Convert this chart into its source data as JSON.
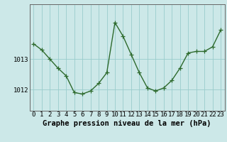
{
  "x": [
    0,
    1,
    2,
    3,
    4,
    5,
    6,
    7,
    8,
    9,
    10,
    11,
    12,
    13,
    14,
    15,
    16,
    17,
    18,
    19,
    20,
    21,
    22,
    23
  ],
  "y": [
    1013.5,
    1013.3,
    1013.0,
    1012.7,
    1012.45,
    1011.9,
    1011.85,
    1011.95,
    1012.2,
    1012.55,
    1014.2,
    1013.75,
    1013.15,
    1012.55,
    1012.05,
    1011.95,
    1012.05,
    1012.3,
    1012.7,
    1013.2,
    1013.25,
    1013.25,
    1013.4,
    1013.95
  ],
  "line_color": "#2d6a2d",
  "marker": "+",
  "marker_size": 4,
  "line_width": 1.0,
  "bg_color": "#cce8e8",
  "grid_color": "#99cccc",
  "xlabel": "Graphe pression niveau de la mer (hPa)",
  "xlabel_fontsize": 7.5,
  "ylabel_ticks": [
    1012,
    1013
  ],
  "ylim": [
    1011.3,
    1014.8
  ],
  "xlim": [
    -0.5,
    23.5
  ],
  "tick_fontsize": 6.5,
  "spine_color": "#666666"
}
